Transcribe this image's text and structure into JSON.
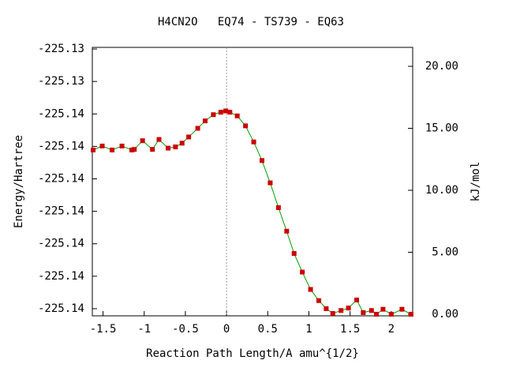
{
  "chart_data": {
    "type": "line",
    "title": "H4CN2O   EQ74 - TS739 - EQ63",
    "x_label": "Reaction Path Length/A amu^{1/2}",
    "y_label": "Energy/Hartree",
    "y2_label": "kJ/mol",
    "x": [
      -1.62,
      -1.51,
      -1.39,
      -1.27,
      -1.15,
      -1.12,
      -1.02,
      -0.9,
      -0.82,
      -0.71,
      -0.62,
      -0.54,
      -0.46,
      -0.35,
      -0.26,
      -0.16,
      -0.07,
      -0.01,
      0.04,
      0.13,
      0.23,
      0.33,
      0.43,
      0.53,
      0.63,
      0.73,
      0.82,
      0.92,
      1.02,
      1.12,
      1.21,
      1.29,
      1.39,
      1.48,
      1.58,
      1.66,
      1.76,
      1.82,
      1.9,
      2.0,
      2.13,
      2.24
    ],
    "series": [
      {
        "name": "EQ74 - TS739 - EQ63",
        "color": "#00a000",
        "marker_color": "#cc0000",
        "axis": "y2",
        "values": [
          13.25,
          13.57,
          13.25,
          13.57,
          13.25,
          13.3,
          14.0,
          13.3,
          14.1,
          13.4,
          13.5,
          13.8,
          14.3,
          15.0,
          15.6,
          16.1,
          16.3,
          16.4,
          16.3,
          16.0,
          15.2,
          13.9,
          12.4,
          10.6,
          8.6,
          6.7,
          4.9,
          3.4,
          2.0,
          1.1,
          0.45,
          0.06,
          0.3,
          0.5,
          1.15,
          0.13,
          0.3,
          0,
          0.4,
          0,
          0.4,
          0
        ]
      }
    ],
    "xlim": [
      -1.63,
      2.26
    ],
    "xticks": [
      -1.5,
      -1,
      -0.5,
      0,
      0.5,
      1,
      1.5,
      2
    ],
    "ylim": [
      -225.14202,
      -225.13375
    ],
    "yticks": [
      {
        "value": -225.1338,
        "label": "-225.13"
      },
      {
        "value": -225.1348,
        "label": "-225.13"
      },
      {
        "value": -225.1358,
        "label": "-225.14"
      },
      {
        "value": -225.1368,
        "label": "-225.14"
      },
      {
        "value": -225.1378,
        "label": "-225.14"
      },
      {
        "value": -225.1388,
        "label": "-225.14"
      },
      {
        "value": -225.1398,
        "label": "-225.14"
      },
      {
        "value": -225.1408,
        "label": "-225.14"
      },
      {
        "value": -225.1418,
        "label": "-225.14"
      }
    ],
    "y2lim": [
      -0.13,
      21.53
    ],
    "y2ticks": [
      {
        "value": 0,
        "label": "0.00"
      },
      {
        "value": 5,
        "label": "5.00"
      },
      {
        "value": 10,
        "label": "10.00"
      },
      {
        "value": 15,
        "label": "15.00"
      },
      {
        "value": 20,
        "label": "20.00"
      }
    ],
    "vline_x": 0
  }
}
